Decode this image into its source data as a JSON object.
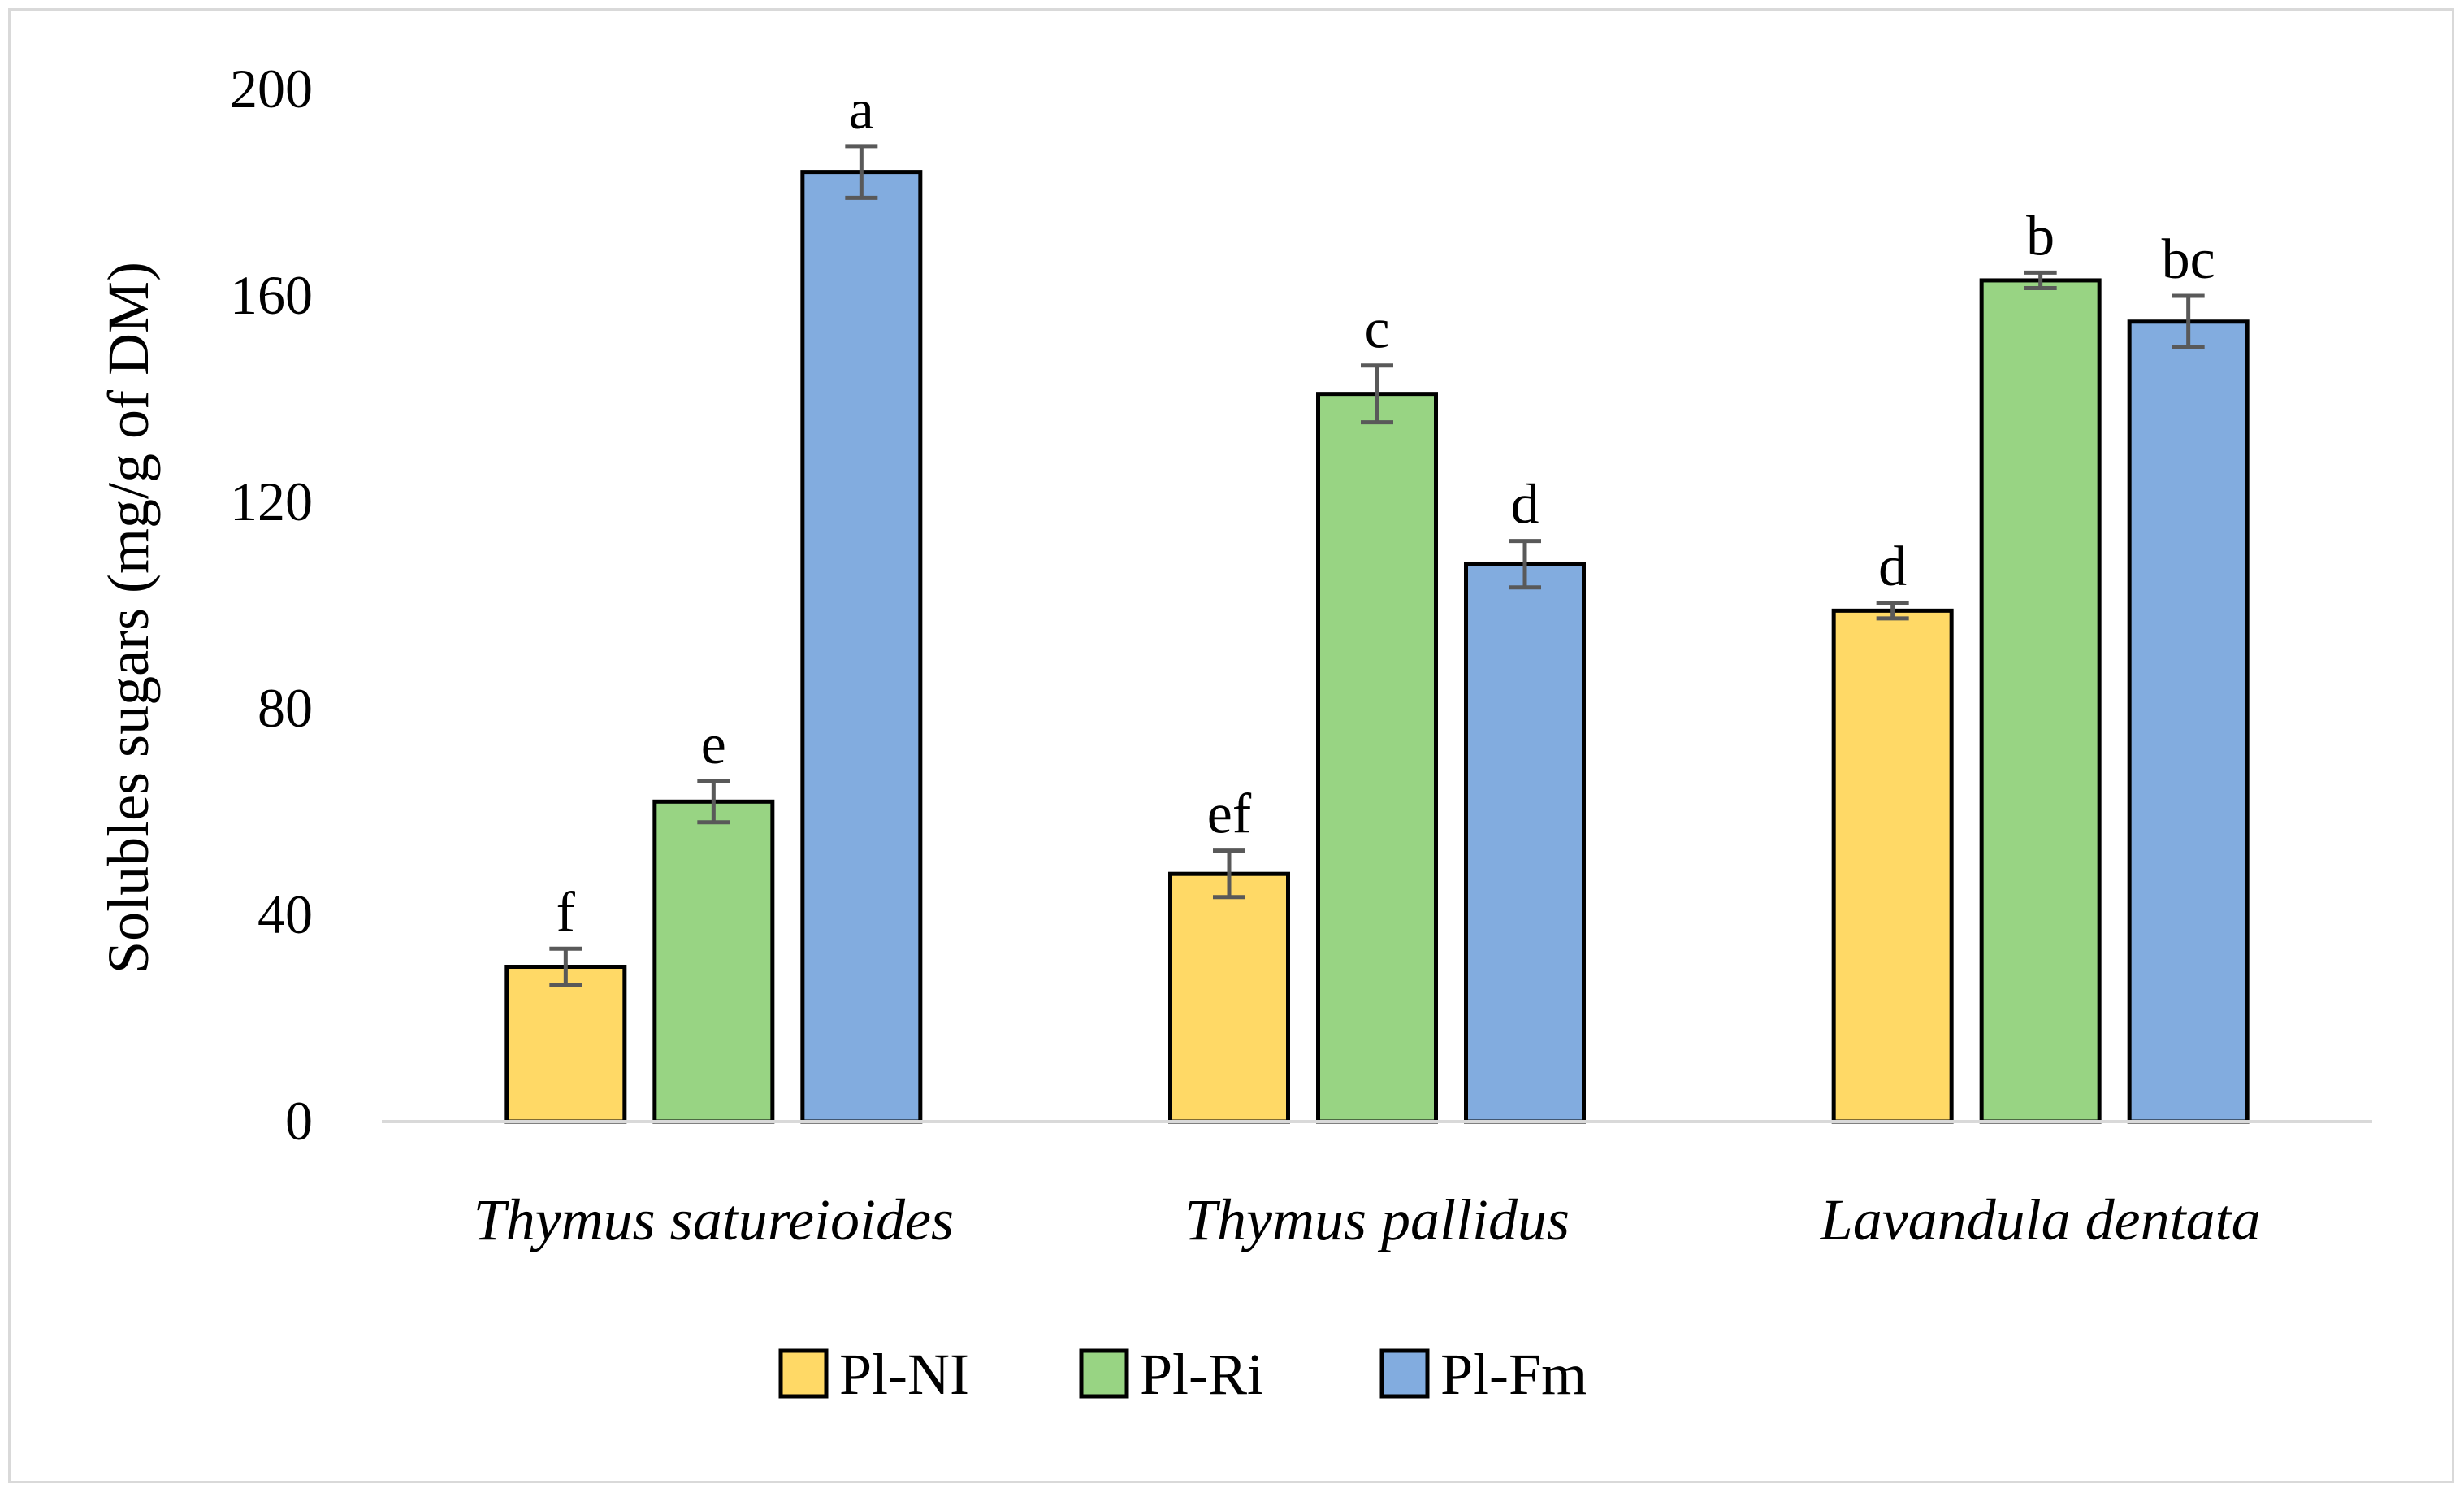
{
  "chart_data": {
    "type": "bar",
    "title": "",
    "ylabel": "Solubles sugars (mg/g of DM)",
    "xlabel": "",
    "ylim": [
      0,
      200
    ],
    "yticks": [
      0,
      40,
      80,
      120,
      160,
      200
    ],
    "categories": [
      "Thymus satureioides",
      "Thymus pallidus",
      "Lavandula dentata"
    ],
    "series": [
      {
        "name": "Pl-NI",
        "color": "#FFD966",
        "values": [
          30,
          48,
          99
        ],
        "errors": [
          3.5,
          4.5,
          1.5
        ],
        "labels": [
          "f",
          "ef",
          "d"
        ]
      },
      {
        "name": "Pl-Ri",
        "color": "#98D483",
        "values": [
          62,
          141,
          163
        ],
        "errors": [
          4,
          5.5,
          1.5
        ],
        "labels": [
          "e",
          "c",
          "b"
        ]
      },
      {
        "name": "Pl-Fm",
        "color": "#82ACDF",
        "values": [
          184,
          108,
          155
        ],
        "errors": [
          5,
          4.5,
          5
        ],
        "labels": [
          "a",
          "d",
          "bc"
        ]
      }
    ],
    "legend_position": "bottom",
    "grid": false
  }
}
